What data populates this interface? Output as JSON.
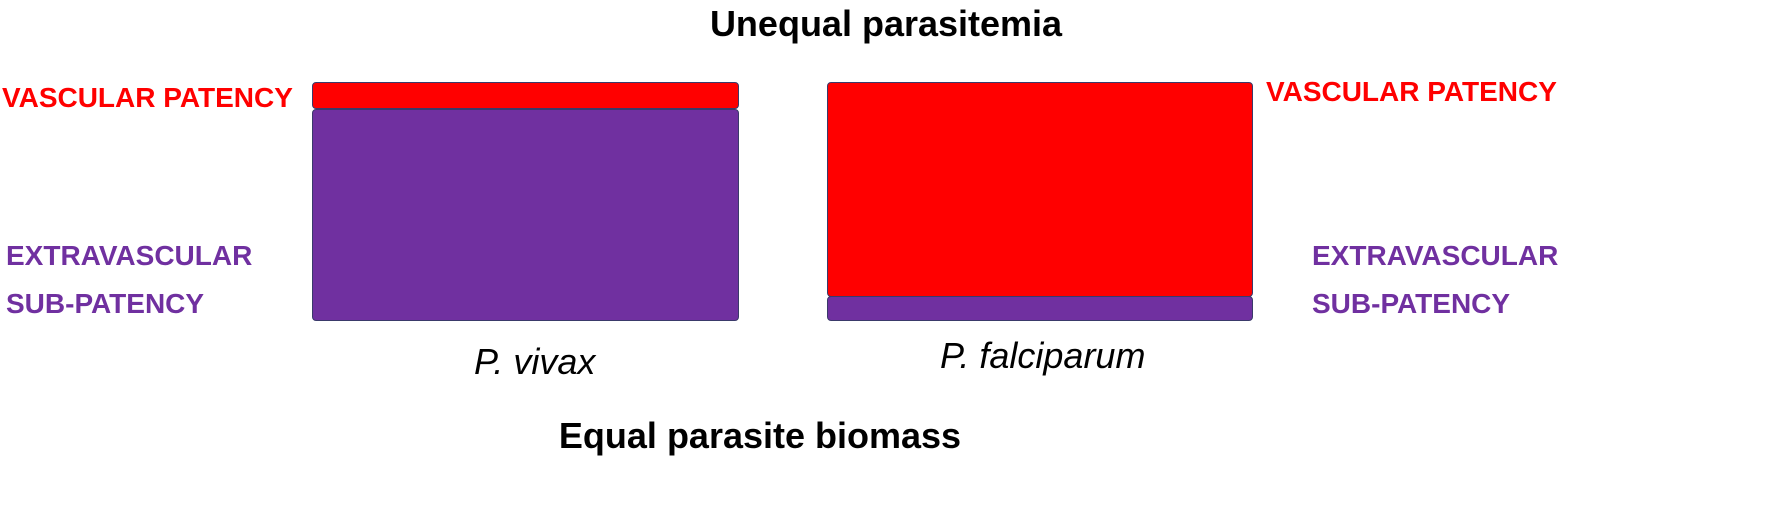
{
  "title_top": "Unequal parasitemia",
  "title_bottom": "Equal parasite biomass",
  "colors": {
    "patency": "#ff0000",
    "subpatency": "#7030a0",
    "border": "#3a3a6a"
  },
  "panels": [
    {
      "species": "P. vivax",
      "patency_label": "VASCULAR PATENCY",
      "subpatency_label_line1": "EXTRAVASCULAR",
      "subpatency_label_line2": "SUB-PATENCY"
    },
    {
      "species": "P. falciparum",
      "patency_label": "VASCULAR PATENCY",
      "subpatency_label_line1": "EXTRAVASCULAR",
      "subpatency_label_line2": "SUB-PATENCY"
    }
  ]
}
